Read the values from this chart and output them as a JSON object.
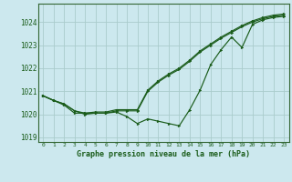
{
  "title": "Graphe pression niveau de la mer (hPa)",
  "bg_color": "#cce8ee",
  "grid_color": "#aacccc",
  "line_color": "#1a5c1a",
  "border_color": "#336633",
  "xlim": [
    -0.5,
    23.5
  ],
  "ylim": [
    1018.8,
    1024.8
  ],
  "yticks": [
    1019,
    1020,
    1021,
    1022,
    1023,
    1024
  ],
  "xticks": [
    0,
    1,
    2,
    3,
    4,
    5,
    6,
    7,
    8,
    9,
    10,
    11,
    12,
    13,
    14,
    15,
    16,
    17,
    18,
    19,
    20,
    21,
    22,
    23
  ],
  "series1": [
    1020.8,
    1020.6,
    1020.4,
    1020.05,
    1020.05,
    1020.05,
    1020.05,
    1020.1,
    1019.9,
    1019.6,
    1019.8,
    1019.7,
    1019.6,
    1019.5,
    1020.2,
    1021.05,
    1022.15,
    1022.8,
    1023.35,
    1022.9,
    1023.9,
    1024.1,
    1024.2,
    1024.25
  ],
  "series2": [
    1020.8,
    1020.6,
    1020.45,
    1020.15,
    1020.0,
    1020.05,
    1020.05,
    1020.15,
    1020.15,
    1020.15,
    1021.0,
    1021.4,
    1021.7,
    1021.95,
    1022.3,
    1022.7,
    1023.0,
    1023.3,
    1023.55,
    1023.8,
    1024.0,
    1024.15,
    1024.25,
    1024.3
  ],
  "series3": [
    1020.8,
    1020.6,
    1020.45,
    1020.15,
    1020.05,
    1020.1,
    1020.1,
    1020.2,
    1020.2,
    1020.2,
    1021.05,
    1021.45,
    1021.75,
    1022.0,
    1022.35,
    1022.75,
    1023.05,
    1023.35,
    1023.6,
    1023.85,
    1024.05,
    1024.2,
    1024.3,
    1024.35
  ]
}
